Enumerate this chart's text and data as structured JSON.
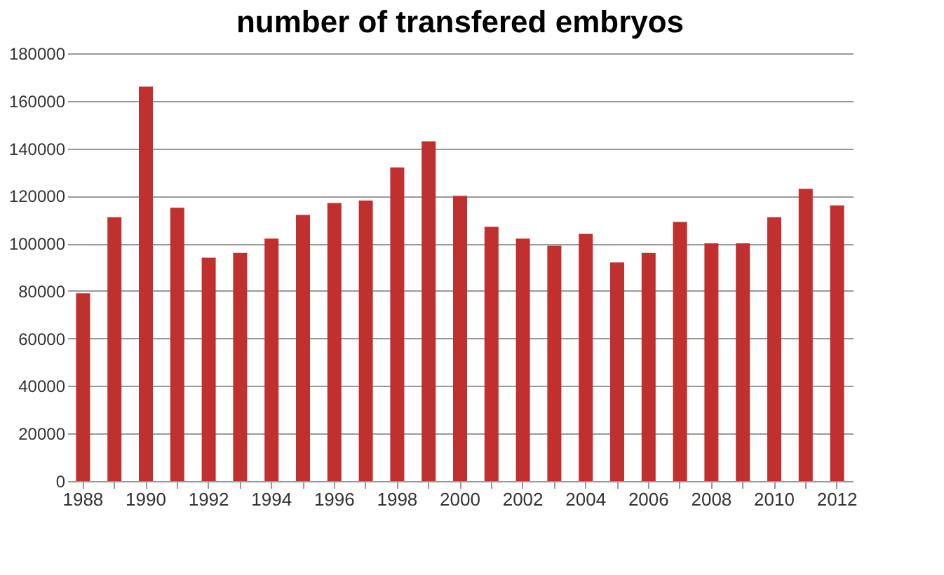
{
  "chart_data": {
    "type": "bar",
    "title": "number of transfered embryos",
    "categories": [
      "1988",
      null,
      "1990",
      null,
      "1992",
      null,
      "1994",
      null,
      "1996",
      null,
      "1998",
      null,
      "2000",
      null,
      "2002",
      null,
      "2004",
      null,
      "2006",
      null,
      "2008",
      null,
      "2010",
      null,
      "2012"
    ],
    "values": [
      79000,
      111000,
      166000,
      115000,
      94000,
      96000,
      102000,
      112000,
      117000,
      118000,
      132000,
      143000,
      120000,
      107000,
      102000,
      99000,
      104000,
      92000,
      96000,
      109000,
      100000,
      100000,
      111000,
      123000,
      116000
    ],
    "color": "#c0302f",
    "ylim": [
      0,
      180000
    ],
    "yticks": [
      0,
      20000,
      40000,
      60000,
      80000,
      100000,
      120000,
      140000,
      160000,
      180000
    ],
    "grid": "y"
  }
}
